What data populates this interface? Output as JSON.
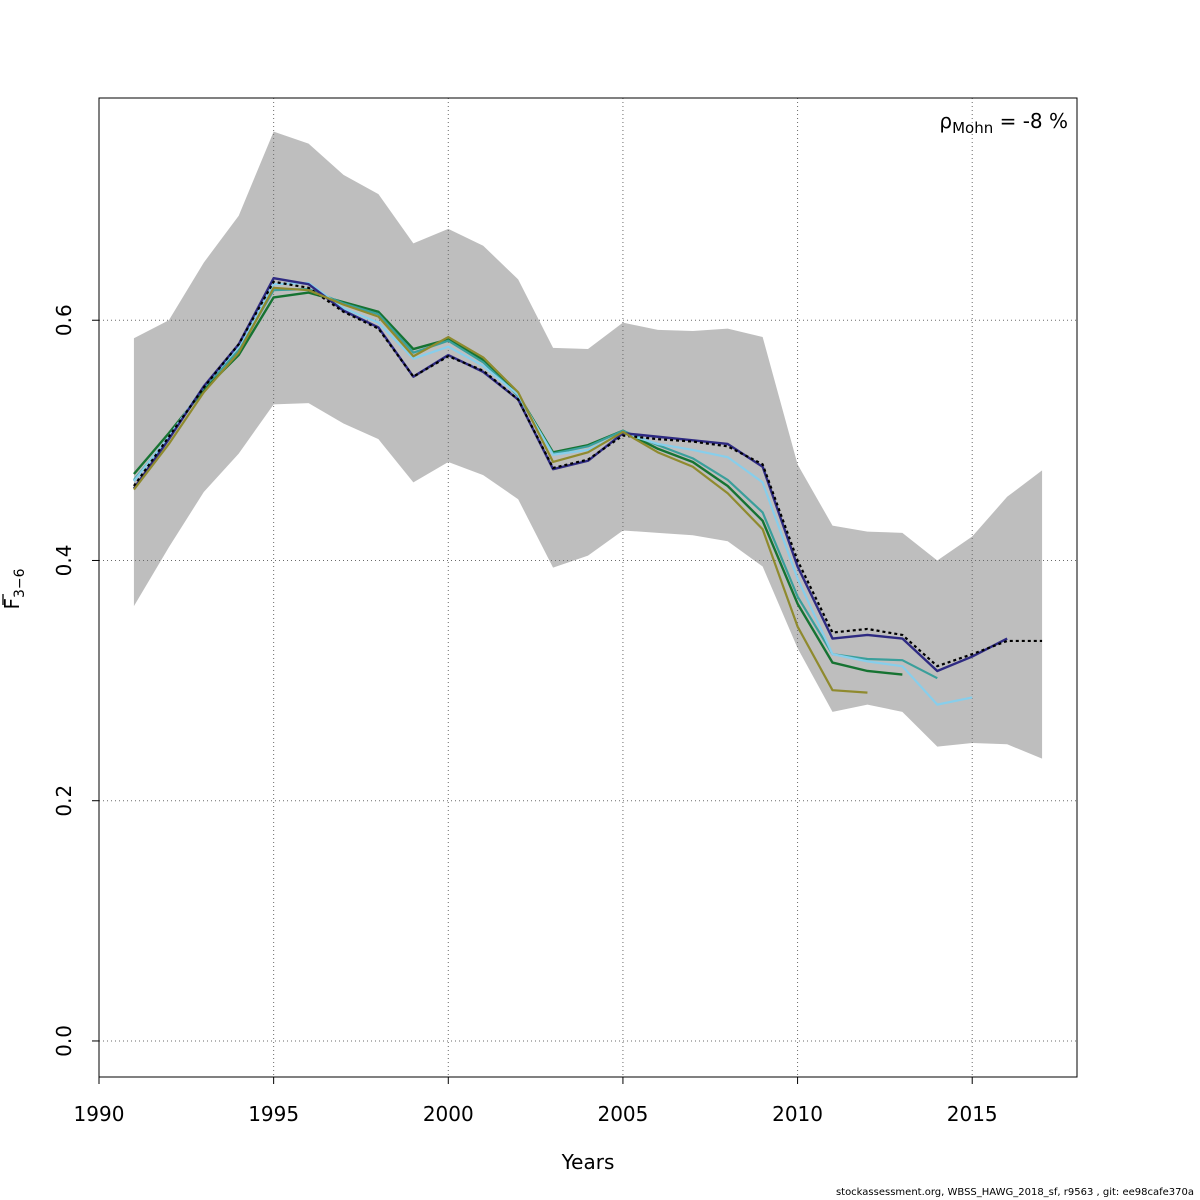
{
  "chart_data": {
    "type": "line",
    "xlabel": "Years",
    "ylabel": "F̄3−6",
    "ylabel_main": "F",
    "ylabel_sub": "3−6",
    "xlim": [
      1990,
      2018
    ],
    "ylim": [
      -0.03,
      0.785
    ],
    "x_ticks": [
      1990,
      1995,
      2000,
      2005,
      2010,
      2015
    ],
    "x_tick_labels": [
      "1990",
      "1995",
      "2000",
      "2005",
      "2010",
      "2015"
    ],
    "y_ticks": [
      0.0,
      0.2,
      0.4,
      0.6
    ],
    "y_tick_labels": [
      "0.0",
      "0.2",
      "0.4",
      "0.6"
    ],
    "grid": true,
    "annotation": {
      "symbol": "ρ",
      "subscript": "Mohn",
      "text": " = -8 %"
    },
    "confidence_band": {
      "color": "#bebebe",
      "x": [
        1991,
        1992,
        1993,
        1994,
        1995,
        1996,
        1997,
        1998,
        1999,
        2000,
        2001,
        2002,
        2003,
        2004,
        2005,
        2006,
        2007,
        2008,
        2009,
        2010,
        2011,
        2012,
        2013,
        2014,
        2015,
        2016,
        2017
      ],
      "upper": [
        0.585,
        0.6,
        0.648,
        0.687,
        0.757,
        0.747,
        0.721,
        0.705,
        0.664,
        0.676,
        0.662,
        0.634,
        0.577,
        0.576,
        0.598,
        0.592,
        0.591,
        0.593,
        0.586,
        0.48,
        0.429,
        0.424,
        0.423,
        0.4,
        0.42,
        0.453,
        0.475
      ],
      "lower": [
        0.362,
        0.411,
        0.457,
        0.489,
        0.53,
        0.531,
        0.514,
        0.501,
        0.465,
        0.482,
        0.471,
        0.451,
        0.394,
        0.404,
        0.425,
        0.423,
        0.421,
        0.416,
        0.395,
        0.327,
        0.274,
        0.28,
        0.274,
        0.245,
        0.248,
        0.247,
        0.235
      ]
    },
    "series": [
      {
        "color": "#000000",
        "dash": "3,3",
        "width": 2.2,
        "x": [
          1991,
          1992,
          1993,
          1994,
          1995,
          1996,
          1997,
          1998,
          1999,
          2000,
          2001,
          2002,
          2003,
          2004,
          2005,
          2006,
          2007,
          2008,
          2009,
          2010,
          2011,
          2012,
          2013,
          2014,
          2015,
          2016,
          2017
        ],
        "values": [
          0.462,
          0.503,
          0.544,
          0.58,
          0.632,
          0.627,
          0.607,
          0.593,
          0.553,
          0.57,
          0.558,
          0.534,
          0.477,
          0.484,
          0.504,
          0.501,
          0.499,
          0.495,
          0.48,
          0.4,
          0.34,
          0.343,
          0.338,
          0.312,
          0.322,
          0.333,
          0.333
        ]
      },
      {
        "color": "#2e2a82",
        "dash": "",
        "width": 2.4,
        "x": [
          1991,
          1992,
          1993,
          1994,
          1995,
          1996,
          1997,
          1998,
          1999,
          2000,
          2001,
          2002,
          2003,
          2004,
          2005,
          2006,
          2007,
          2008,
          2009,
          2010,
          2011,
          2012,
          2013,
          2014,
          2015,
          2016
        ],
        "values": [
          0.46,
          0.501,
          0.545,
          0.58,
          0.635,
          0.63,
          0.608,
          0.594,
          0.553,
          0.571,
          0.557,
          0.534,
          0.476,
          0.483,
          0.506,
          0.503,
          0.5,
          0.497,
          0.478,
          0.395,
          0.335,
          0.338,
          0.335,
          0.308,
          0.32,
          0.335
        ]
      },
      {
        "color": "#87ceeb",
        "dash": "",
        "width": 2.2,
        "x": [
          1991,
          1992,
          1993,
          1994,
          1995,
          1996,
          1997,
          1998,
          1999,
          2000,
          2001,
          2002,
          2003,
          2004,
          2005,
          2006,
          2007,
          2008,
          2009,
          2010,
          2011,
          2012,
          2013,
          2014,
          2015
        ],
        "values": [
          0.466,
          0.503,
          0.545,
          0.578,
          0.63,
          0.631,
          0.61,
          0.598,
          0.568,
          0.578,
          0.562,
          0.538,
          0.488,
          0.492,
          0.506,
          0.497,
          0.492,
          0.486,
          0.465,
          0.385,
          0.322,
          0.316,
          0.312,
          0.28,
          0.286
        ]
      },
      {
        "color": "#3a9f9b",
        "dash": "",
        "width": 2.2,
        "x": [
          1991,
          1992,
          1993,
          1994,
          1995,
          1996,
          1997,
          1998,
          1999,
          2000,
          2001,
          2002,
          2003,
          2004,
          2005,
          2006,
          2007,
          2008,
          2009,
          2010,
          2011,
          2012,
          2013,
          2014
        ],
        "values": [
          0.467,
          0.502,
          0.544,
          0.575,
          0.625,
          0.626,
          0.614,
          0.605,
          0.573,
          0.583,
          0.565,
          0.537,
          0.489,
          0.495,
          0.508,
          0.496,
          0.485,
          0.467,
          0.44,
          0.37,
          0.322,
          0.318,
          0.317,
          0.302
        ]
      },
      {
        "color": "#167332",
        "dash": "",
        "width": 2.4,
        "x": [
          1991,
          1992,
          1993,
          1994,
          1995,
          1996,
          1997,
          1998,
          1999,
          2000,
          2001,
          2002,
          2003,
          2004,
          2005,
          2006,
          2007,
          2008,
          2009,
          2010,
          2011,
          2012,
          2013
        ],
        "values": [
          0.472,
          0.506,
          0.542,
          0.571,
          0.619,
          0.623,
          0.615,
          0.607,
          0.576,
          0.584,
          0.567,
          0.538,
          0.49,
          0.496,
          0.508,
          0.493,
          0.482,
          0.462,
          0.433,
          0.364,
          0.315,
          0.308,
          0.305
        ]
      },
      {
        "color": "#8f8a2e",
        "dash": "",
        "width": 2.2,
        "x": [
          1991,
          1992,
          1993,
          1994,
          1995,
          1996,
          1997,
          1998,
          1999,
          2000,
          2001,
          2002,
          2003,
          2004,
          2005,
          2006,
          2007,
          2008,
          2009,
          2010,
          2011,
          2012
        ],
        "values": [
          0.459,
          0.497,
          0.54,
          0.573,
          0.627,
          0.625,
          0.613,
          0.603,
          0.57,
          0.586,
          0.569,
          0.54,
          0.482,
          0.49,
          0.507,
          0.49,
          0.478,
          0.456,
          0.426,
          0.345,
          0.292,
          0.29
        ]
      }
    ]
  },
  "footer_text": "stockassessment.org, WBSS_HAWG_2018_sf, r9563 , git: ee98cafe370a"
}
